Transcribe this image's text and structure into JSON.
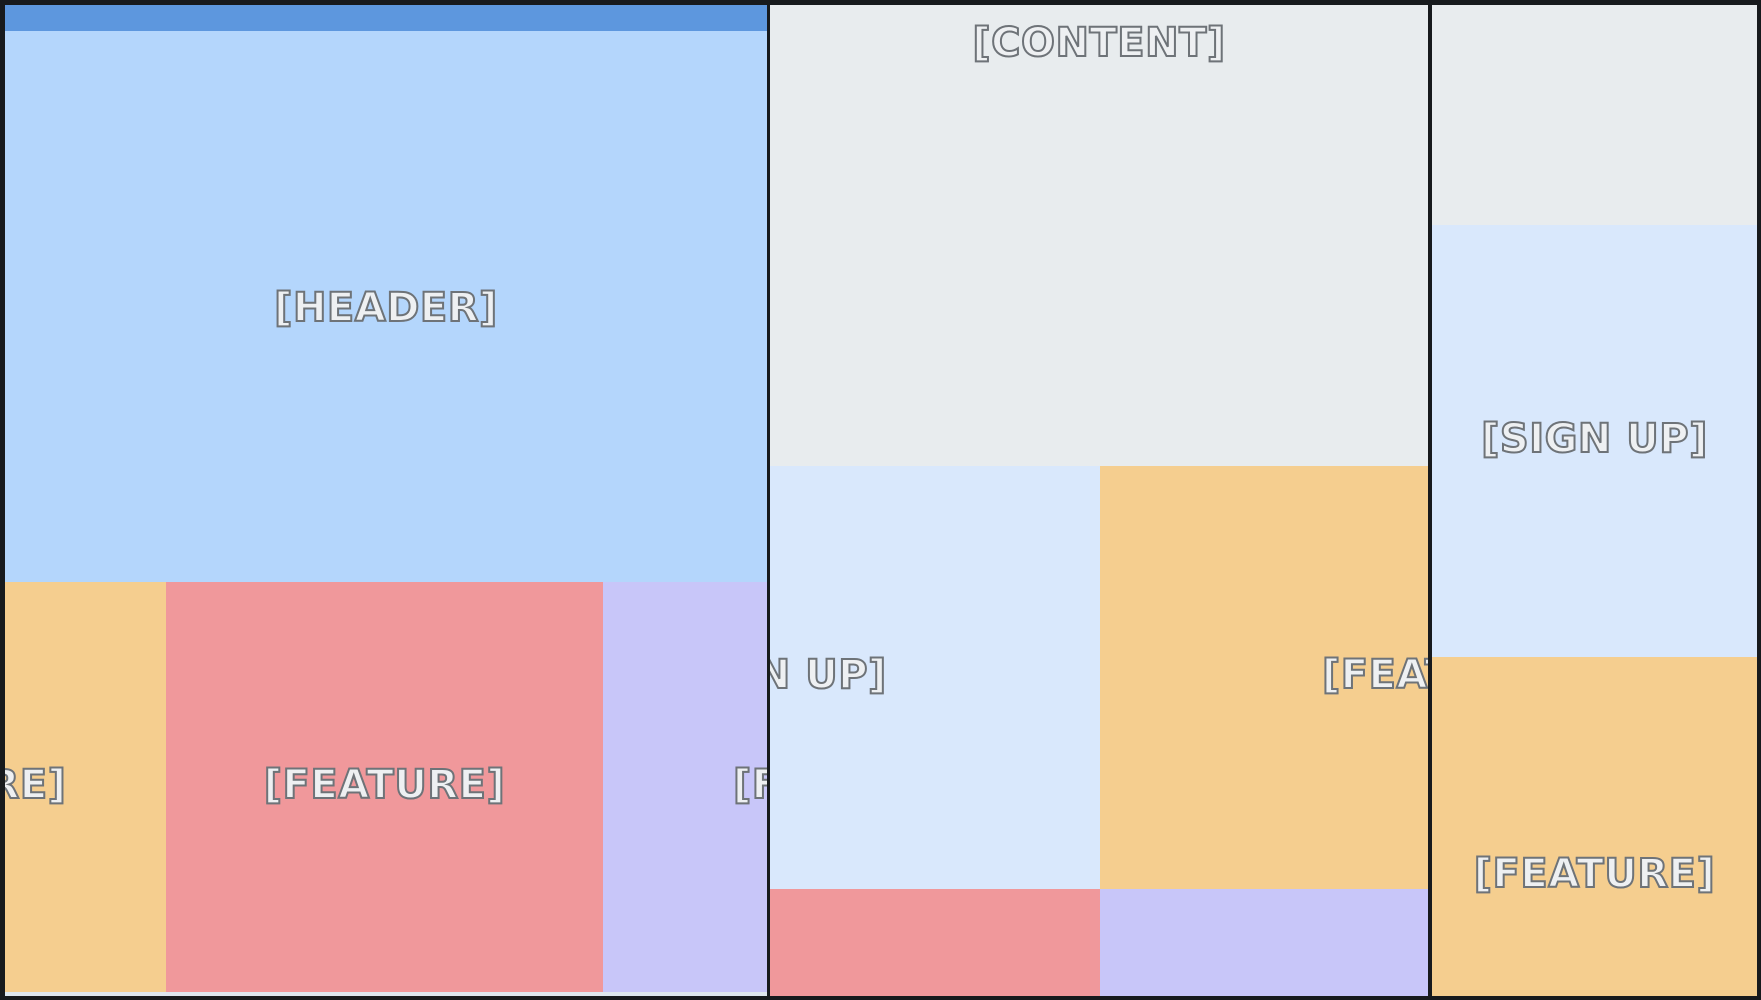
{
  "labels": {
    "header": "[HEADER]",
    "feature": "[FEATURE]",
    "content": "[CONTENT]",
    "sign_up": "[SIGN UP]"
  },
  "colors": {
    "frame": "#171a1d",
    "header_bar": "#5d97de",
    "header": "#b4d6fc",
    "sign_up": "#d9e8fc",
    "feature_orange": "#f5ce8f",
    "feature_red": "#f0989b",
    "feature_purple": "#c8c6f9",
    "content": "#e8ecee"
  }
}
